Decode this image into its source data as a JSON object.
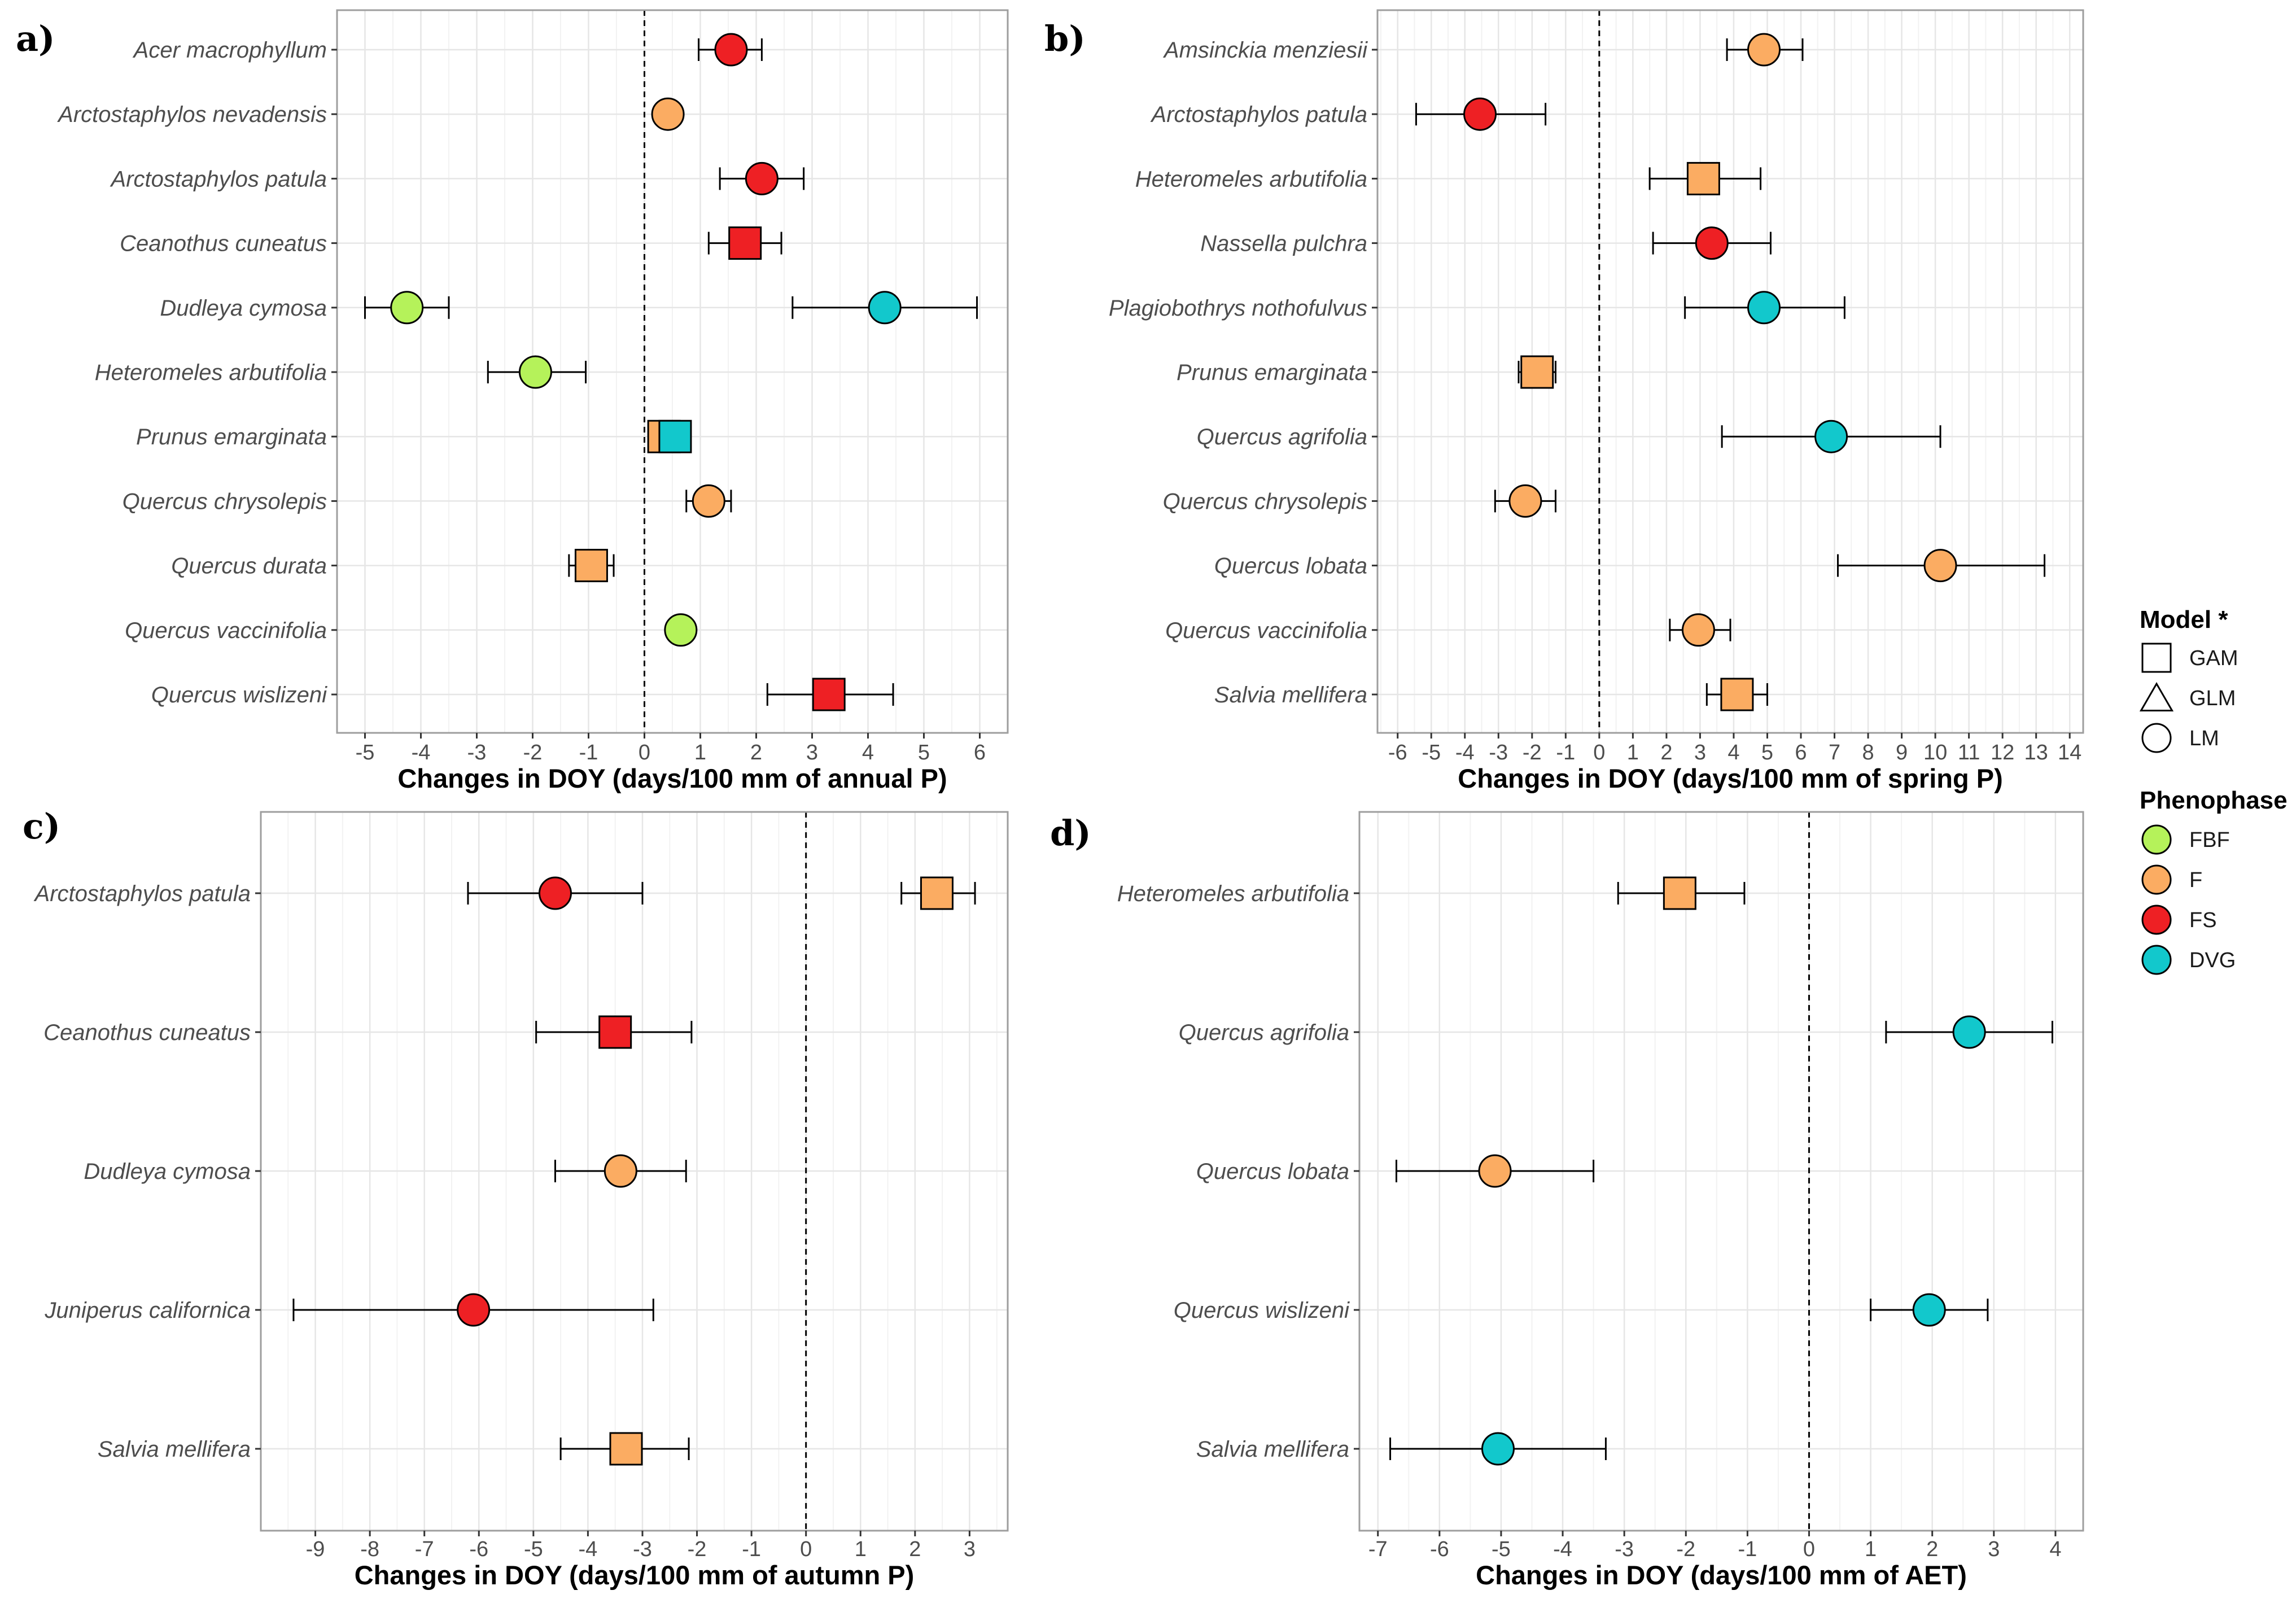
{
  "chart_data": [
    {
      "panel": "a)",
      "type": "scatter",
      "xlabel": "Changes in DOY (days/100 mm of annual P)",
      "xlim": [
        -5.5,
        6.5
      ],
      "xticks": [
        -5,
        -4,
        -3,
        -2,
        -1,
        0,
        1,
        2,
        3,
        4,
        5,
        6
      ],
      "categories": [
        "Acer macrophyllum",
        "Arctostaphylos nevadensis",
        "Arctostaphylos patula",
        "Ceanothus cuneatus",
        "Dudleya cymosa",
        "Heteromeles arbutifolia",
        "Prunus emarginata",
        "Quercus chrysolepis",
        "Quercus durata",
        "Quercus vaccinifolia",
        "Quercus wislizeni"
      ],
      "points": [
        {
          "species": "Acer macrophyllum",
          "value": 1.55,
          "low": 0.97,
          "high": 2.1,
          "phenophase": "FS",
          "model": "LM"
        },
        {
          "species": "Arctostaphylos nevadensis",
          "value": 0.42,
          "low": 0.3,
          "high": 0.55,
          "phenophase": "F",
          "model": "LM"
        },
        {
          "species": "Arctostaphylos patula",
          "value": 2.1,
          "low": 1.35,
          "high": 2.85,
          "phenophase": "FS",
          "model": "LM"
        },
        {
          "species": "Ceanothus cuneatus",
          "value": 1.8,
          "low": 1.15,
          "high": 2.45,
          "phenophase": "FS",
          "model": "GAM"
        },
        {
          "species": "Dudleya cymosa",
          "value": -4.25,
          "low": -5.0,
          "high": -3.5,
          "phenophase": "FBF",
          "model": "LM"
        },
        {
          "species": "Dudleya cymosa",
          "value": 4.3,
          "low": 2.65,
          "high": 5.95,
          "phenophase": "DVG",
          "model": "LM"
        },
        {
          "species": "Heteromeles arbutifolia",
          "value": -1.95,
          "low": -2.8,
          "high": -1.05,
          "phenophase": "FBF",
          "model": "LM"
        },
        {
          "species": "Prunus emarginata",
          "value": 0.35,
          "low": 0.25,
          "high": 0.45,
          "phenophase": "F",
          "model": "GAM"
        },
        {
          "species": "Prunus emarginata",
          "value": 0.55,
          "low": 0.3,
          "high": 0.75,
          "phenophase": "DVG",
          "model": "GAM"
        },
        {
          "species": "Quercus chrysolepis",
          "value": 1.15,
          "low": 0.75,
          "high": 1.55,
          "phenophase": "F",
          "model": "LM"
        },
        {
          "species": "Quercus durata",
          "value": -0.95,
          "low": -1.35,
          "high": -0.55,
          "phenophase": "F",
          "model": "GAM"
        },
        {
          "species": "Quercus vaccinifolia",
          "value": 0.65,
          "low": 0.5,
          "high": 0.8,
          "phenophase": "FBF",
          "model": "LM"
        },
        {
          "species": "Quercus wislizeni",
          "value": 3.3,
          "low": 2.2,
          "high": 4.45,
          "phenophase": "FS",
          "model": "GAM"
        }
      ]
    },
    {
      "panel": "b)",
      "type": "scatter",
      "xlabel": "Changes in DOY (days/100 mm of spring P)",
      "xlim": [
        -6.6,
        14.4
      ],
      "xticks": [
        -6,
        -5,
        -4,
        -3,
        -2,
        -1,
        0,
        1,
        2,
        3,
        4,
        5,
        6,
        7,
        8,
        9,
        10,
        11,
        12,
        13,
        14
      ],
      "categories": [
        "Amsinckia menziesii",
        "Arctostaphylos patula",
        "Heteromeles arbutifolia",
        "Nassella pulchra",
        "Plagiobothrys nothofulvus",
        "Prunus emarginata",
        "Quercus agrifolia",
        "Quercus chrysolepis",
        "Quercus lobata",
        "Quercus vaccinifolia",
        "Salvia mellifera"
      ],
      "points": [
        {
          "species": "Amsinckia menziesii",
          "value": 4.9,
          "low": 3.8,
          "high": 6.05,
          "phenophase": "F",
          "model": "LM"
        },
        {
          "species": "Arctostaphylos patula",
          "value": -3.55,
          "low": -5.45,
          "high": -1.6,
          "phenophase": "FS",
          "model": "LM"
        },
        {
          "species": "Heteromeles arbutifolia",
          "value": 3.1,
          "low": 1.5,
          "high": 4.8,
          "phenophase": "F",
          "model": "GAM"
        },
        {
          "species": "Nassella pulchra",
          "value": 3.35,
          "low": 1.6,
          "high": 5.1,
          "phenophase": "FS",
          "model": "LM"
        },
        {
          "species": "Plagiobothrys nothofulvus",
          "value": 4.9,
          "low": 2.55,
          "high": 7.3,
          "phenophase": "DVG",
          "model": "LM"
        },
        {
          "species": "Prunus emarginata",
          "value": -1.85,
          "low": -2.4,
          "high": -1.3,
          "phenophase": "F",
          "model": "GAM"
        },
        {
          "species": "Quercus agrifolia",
          "value": 6.9,
          "low": 3.65,
          "high": 10.15,
          "phenophase": "DVG",
          "model": "LM"
        },
        {
          "species": "Quercus chrysolepis",
          "value": -2.2,
          "low": -3.1,
          "high": -1.3,
          "phenophase": "F",
          "model": "LM"
        },
        {
          "species": "Quercus lobata",
          "value": 10.15,
          "low": 7.1,
          "high": 13.25,
          "phenophase": "F",
          "model": "LM"
        },
        {
          "species": "Quercus vaccinifolia",
          "value": 2.95,
          "low": 2.1,
          "high": 3.9,
          "phenophase": "F",
          "model": "LM"
        },
        {
          "species": "Salvia mellifera",
          "value": 4.1,
          "low": 3.2,
          "high": 5.0,
          "phenophase": "F",
          "model": "GAM"
        }
      ]
    },
    {
      "panel": "c)",
      "type": "scatter",
      "xlabel": "Changes in DOY (days/100 mm of autumn P)",
      "xlim": [
        -10.0,
        3.7
      ],
      "xticks": [
        -9,
        -8,
        -7,
        -6,
        -5,
        -4,
        -3,
        -2,
        -1,
        0,
        1,
        2,
        3
      ],
      "categories": [
        "Arctostaphylos patula",
        "Ceanothus cuneatus",
        "Dudleya cymosa",
        "Juniperus californica",
        "Salvia mellifera"
      ],
      "points": [
        {
          "species": "Arctostaphylos patula",
          "value": -4.6,
          "low": -6.2,
          "high": -3.0,
          "phenophase": "FS",
          "model": "LM"
        },
        {
          "species": "Arctostaphylos patula",
          "value": 2.4,
          "low": 1.75,
          "high": 3.1,
          "phenophase": "F",
          "model": "GAM"
        },
        {
          "species": "Ceanothus cuneatus",
          "value": -3.5,
          "low": -4.95,
          "high": -2.1,
          "phenophase": "FS",
          "model": "GAM"
        },
        {
          "species": "Dudleya cymosa",
          "value": -3.4,
          "low": -4.6,
          "high": -2.2,
          "phenophase": "F",
          "model": "LM"
        },
        {
          "species": "Juniperus californica",
          "value": -6.1,
          "low": -9.4,
          "high": -2.8,
          "phenophase": "FS",
          "model": "LM"
        },
        {
          "species": "Salvia mellifera",
          "value": -3.3,
          "low": -4.5,
          "high": -2.15,
          "phenophase": "F",
          "model": "GAM"
        }
      ]
    },
    {
      "panel": "d)",
      "type": "scatter",
      "xlabel": "Changes in DOY (days/100 mm of AET)",
      "xlim": [
        -7.3,
        4.45
      ],
      "xticks": [
        -7,
        -6,
        -5,
        -4,
        -3,
        -2,
        -1,
        0,
        1,
        2,
        3,
        4
      ],
      "categories": [
        "Heteromeles arbutifolia",
        "Quercus agrifolia",
        "Quercus lobata",
        "Quercus wislizeni",
        "Salvia mellifera"
      ],
      "points": [
        {
          "species": "Heteromeles arbutifolia",
          "value": -2.1,
          "low": -3.1,
          "high": -1.05,
          "phenophase": "F",
          "model": "GAM"
        },
        {
          "species": "Quercus agrifolia",
          "value": 2.6,
          "low": 1.25,
          "high": 3.95,
          "phenophase": "DVG",
          "model": "LM"
        },
        {
          "species": "Quercus lobata",
          "value": -5.1,
          "low": -6.7,
          "high": -3.5,
          "phenophase": "F",
          "model": "LM"
        },
        {
          "species": "Quercus wislizeni",
          "value": 1.95,
          "low": 1.0,
          "high": 2.9,
          "phenophase": "DVG",
          "model": "LM"
        },
        {
          "species": "Salvia mellifera",
          "value": -5.05,
          "low": -6.8,
          "high": -3.3,
          "phenophase": "DVG",
          "model": "LM"
        }
      ]
    }
  ],
  "legend": {
    "model_title": "Model *",
    "models": [
      "GAM",
      "GLM",
      "LM"
    ],
    "phenophase_title": "Phenophase",
    "phenophases": [
      "FBF",
      "F",
      "FS",
      "DVG"
    ]
  },
  "colors": {
    "FBF": "#b5f25a",
    "F": "#fbac62",
    "FS": "#ee2024",
    "DVG": "#12c8cc",
    "panel_border": "#9e9e9e",
    "grid_major": "#e6e6e6",
    "grid_minor": "#f2f2f2"
  }
}
